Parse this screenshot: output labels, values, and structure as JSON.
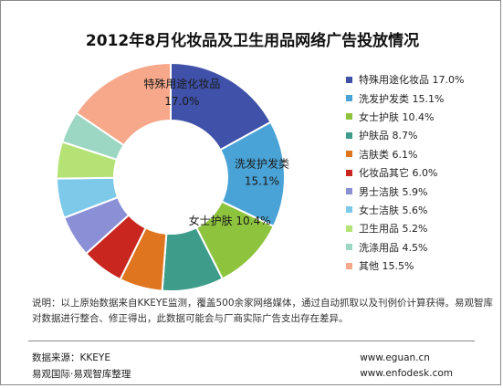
{
  "chart_data": {
    "type": "pie",
    "title": "2012年8月化妆品及卫生用品网络广告投放情况",
    "categories": [
      "特殊用途化妆品",
      "洗发护发类",
      "女士护肤",
      "护肤品",
      "洁肤类",
      "化妆品其它",
      "男士洁肤",
      "女士洁肤",
      "卫生用品",
      "洗涤用品",
      "其他"
    ],
    "values": [
      17.0,
      15.1,
      10.4,
      8.7,
      6.1,
      6.0,
      5.9,
      5.6,
      5.2,
      4.5,
      15.5
    ],
    "legend": [
      "特殊用途化妆品 17.0%",
      "洗发护发类 15.1%",
      "女士护肤 10.4%",
      "护肤品 8.7%",
      "洁肤类 6.1%",
      "化妆品其它 6.0%",
      "男士洁肤 5.9%",
      "女士洁肤 5.6%",
      "卫生用品 5.2%",
      "洗涤用品 4.5%",
      "其他 15.5%"
    ],
    "colors": [
      "#3f51a8",
      "#4aa3d6",
      "#8ec33d",
      "#3d9c8a",
      "#e0751f",
      "#c8261e",
      "#8a8fd6",
      "#7cc9ea",
      "#b4e275",
      "#9bd7c3",
      "#f7a88a"
    ],
    "data_labels": [
      {
        "name": "特殊用途化妆品",
        "value": "17.0%"
      },
      {
        "name": "洗发护发类",
        "value": "15.1%"
      },
      {
        "name": "女士护肤",
        "value": "10.4%"
      }
    ],
    "legend_position": "right",
    "chart_style": "donut"
  },
  "note": "说明：以上原始数据来自KKEYE监测，覆盖500余家网络媒体，通过自动抓取以及刊例价计算获得。易观智库对数据进行整合、修正得出，此数据可能会与厂商实际广告支出存在差异。",
  "footer": {
    "source": "数据来源：KKEYE",
    "org": "易观国际·易观智库整理",
    "url1": "www.eguan.cn",
    "url2": "www.enfodesk.com"
  }
}
